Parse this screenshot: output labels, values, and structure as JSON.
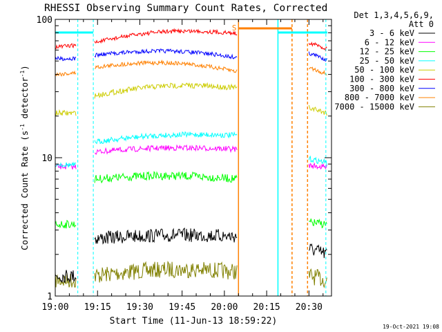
{
  "chart_data": {
    "type": "line",
    "title": "RHESSI Observing Summary Count Rates, Corrected",
    "xlabel": "Start Time (11-Jun-13 18:59:22)",
    "ylabel_main": "Corrected Count Rate (s",
    "ylabel_sup1": "-1",
    "ylabel_mid": " detector",
    "ylabel_sup2": "-1",
    "ylabel_end": ")",
    "yscale": "log",
    "ylim": [
      1,
      100
    ],
    "xlim": [
      "19:00",
      "20:38"
    ],
    "x_ticks": [
      "19:00",
      "19:15",
      "19:30",
      "19:45",
      "20:00",
      "20:15",
      "20:30"
    ],
    "y_ticks": [
      "1",
      "10",
      "100"
    ],
    "legend_header": [
      "Det 1,3,4,5,6,9,",
      "Att 0"
    ],
    "legend_position": "right",
    "series": [
      {
        "name": "3 - 6 keV",
        "color": "#000000"
      },
      {
        "name": "6 - 12 keV",
        "color": "#ff00ff"
      },
      {
        "name": "12 - 25 keV",
        "color": "#00ff00"
      },
      {
        "name": "25 - 50 keV",
        "color": "#00ffff"
      },
      {
        "name": "50 - 100 keV",
        "color": "#cccc00"
      },
      {
        "name": "100 - 300 keV",
        "color": "#ff0000"
      },
      {
        "name": "300 - 800 keV",
        "color": "#0000ff"
      },
      {
        "name": "800 - 7000 keV",
        "color": "#ff8000"
      },
      {
        "name": "7000 - 15000 keV",
        "color": "#808000"
      }
    ],
    "flag_label": "S",
    "footer": "19-Oct-2021 19:08"
  }
}
